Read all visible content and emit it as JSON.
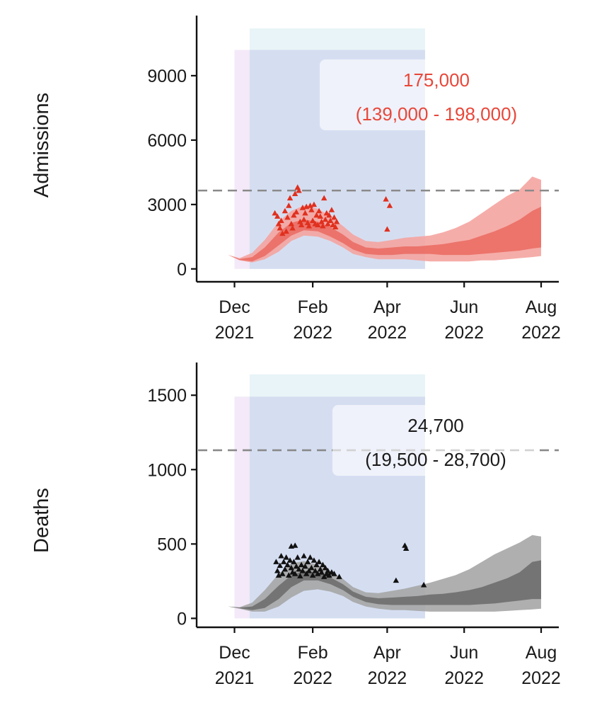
{
  "chart_data": [
    {
      "type": "area",
      "ylabel": "Admissions",
      "xlabel": "",
      "color": "#e8473a",
      "x_ticks": [
        {
          "date": "2021-12-01",
          "month": "Dec",
          "year": "2021"
        },
        {
          "date": "2022-02-01",
          "month": "Feb",
          "year": "2022"
        },
        {
          "date": "2022-04-01",
          "month": "Apr",
          "year": "2022"
        },
        {
          "date": "2022-06-01",
          "month": "Jun",
          "year": "2022"
        },
        {
          "date": "2022-08-01",
          "month": "Aug",
          "year": "2022"
        }
      ],
      "xlim": [
        "2021-11-01",
        "2022-08-15"
      ],
      "ylim": [
        -600,
        11800
      ],
      "y_ticks": [
        0,
        3000,
        6000,
        9000
      ],
      "y_tick_labels": [
        "0",
        "3000",
        "6000",
        "9000"
      ],
      "reference_line": 3650,
      "shaded_periods": [
        {
          "start": "2021-12-01",
          "end": "2022-05-01",
          "top": 10200,
          "color": "#efe2f5"
        },
        {
          "start": "2021-12-13",
          "end": "2022-05-01",
          "top": 11200,
          "color": "#def0f3"
        }
      ],
      "annotation": {
        "value": "175,000",
        "interval": "(139,000 - 198,000)"
      },
      "bands": {
        "x": [
          "2021-11-26",
          "2021-12-05",
          "2021-12-15",
          "2021-12-25",
          "2022-01-05",
          "2022-01-15",
          "2022-01-25",
          "2022-02-05",
          "2022-02-15",
          "2022-02-25",
          "2022-03-05",
          "2022-03-15",
          "2022-03-25",
          "2022-04-05",
          "2022-04-15",
          "2022-04-25",
          "2022-05-05",
          "2022-05-15",
          "2022-05-25",
          "2022-06-05",
          "2022-06-15",
          "2022-06-25",
          "2022-07-05",
          "2022-07-15",
          "2022-07-25",
          "2022-08-01"
        ],
        "outer_low": [
          650,
          400,
          300,
          450,
          800,
          1300,
          1550,
          1500,
          1300,
          1000,
          700,
          550,
          450,
          450,
          450,
          400,
          350,
          350,
          350,
          350,
          400,
          400,
          450,
          500,
          550,
          600
        ],
        "inner_low": [
          650,
          420,
          350,
          600,
          1100,
          1550,
          1800,
          1750,
          1500,
          1200,
          900,
          700,
          650,
          650,
          700,
          700,
          700,
          650,
          650,
          650,
          700,
          750,
          800,
          850,
          950,
          1000
        ],
        "inner_high": [
          650,
          460,
          550,
          1000,
          1700,
          2150,
          2300,
          2200,
          1950,
          1600,
          1250,
          1000,
          950,
          1000,
          1050,
          1050,
          1100,
          1150,
          1250,
          1350,
          1550,
          1750,
          2000,
          2300,
          2700,
          2900
        ],
        "outer_high": [
          650,
          500,
          750,
          1350,
          2200,
          2700,
          2950,
          2800,
          2450,
          2000,
          1600,
          1300,
          1250,
          1350,
          1450,
          1500,
          1550,
          1700,
          1900,
          2200,
          2600,
          3000,
          3400,
          3700,
          4300,
          4150
        ]
      },
      "observed": [
        {
          "x": "2022-01-02",
          "y": 2600
        },
        {
          "x": "2022-01-04",
          "y": 2450
        },
        {
          "x": "2022-01-05",
          "y": 2100
        },
        {
          "x": "2022-01-06",
          "y": 1900
        },
        {
          "x": "2022-01-07",
          "y": 2250
        },
        {
          "x": "2022-01-08",
          "y": 1650
        },
        {
          "x": "2022-01-10",
          "y": 2700
        },
        {
          "x": "2022-01-11",
          "y": 1750
        },
        {
          "x": "2022-01-12",
          "y": 2400
        },
        {
          "x": "2022-01-13",
          "y": 2950
        },
        {
          "x": "2022-01-14",
          "y": 3300
        },
        {
          "x": "2022-01-15",
          "y": 2100
        },
        {
          "x": "2022-01-16",
          "y": 1900
        },
        {
          "x": "2022-01-17",
          "y": 2500
        },
        {
          "x": "2022-01-18",
          "y": 3500
        },
        {
          "x": "2022-01-19",
          "y": 2650
        },
        {
          "x": "2022-01-20",
          "y": 3800
        },
        {
          "x": "2022-01-21",
          "y": 3650
        },
        {
          "x": "2022-01-22",
          "y": 2200
        },
        {
          "x": "2022-01-23",
          "y": 2050
        },
        {
          "x": "2022-01-24",
          "y": 2850
        },
        {
          "x": "2022-01-25",
          "y": 2300
        },
        {
          "x": "2022-01-26",
          "y": 2600
        },
        {
          "x": "2022-01-27",
          "y": 2900
        },
        {
          "x": "2022-01-28",
          "y": 2150
        },
        {
          "x": "2022-01-29",
          "y": 2000
        },
        {
          "x": "2022-01-30",
          "y": 2950
        },
        {
          "x": "2022-01-31",
          "y": 2750
        },
        {
          "x": "2022-02-01",
          "y": 2250
        },
        {
          "x": "2022-02-02",
          "y": 3000
        },
        {
          "x": "2022-02-03",
          "y": 2100
        },
        {
          "x": "2022-02-04",
          "y": 2500
        },
        {
          "x": "2022-02-05",
          "y": 2050
        },
        {
          "x": "2022-02-06",
          "y": 2700
        },
        {
          "x": "2022-02-07",
          "y": 2450
        },
        {
          "x": "2022-02-08",
          "y": 2200
        },
        {
          "x": "2022-02-09",
          "y": 2000
        },
        {
          "x": "2022-02-10",
          "y": 3300
        },
        {
          "x": "2022-02-11",
          "y": 2300
        },
        {
          "x": "2022-02-12",
          "y": 2600
        },
        {
          "x": "2022-02-13",
          "y": 2100
        },
        {
          "x": "2022-02-14",
          "y": 2500
        },
        {
          "x": "2022-02-15",
          "y": 2250
        },
        {
          "x": "2022-02-16",
          "y": 2750
        },
        {
          "x": "2022-02-17",
          "y": 2050
        },
        {
          "x": "2022-02-18",
          "y": 2400
        },
        {
          "x": "2022-02-19",
          "y": 1950
        },
        {
          "x": "2022-02-20",
          "y": 2200
        },
        {
          "x": "2022-03-31",
          "y": 3250
        },
        {
          "x": "2022-04-01",
          "y": 1850
        },
        {
          "x": "2022-04-03",
          "y": 2950
        }
      ]
    },
    {
      "type": "area",
      "ylabel": "Deaths",
      "xlabel": "",
      "color": "#555555",
      "x_ticks": [
        {
          "date": "2021-12-01",
          "month": "Dec",
          "year": "2021"
        },
        {
          "date": "2022-02-01",
          "month": "Feb",
          "year": "2022"
        },
        {
          "date": "2022-04-01",
          "month": "Apr",
          "year": "2022"
        },
        {
          "date": "2022-06-01",
          "month": "Jun",
          "year": "2022"
        },
        {
          "date": "2022-08-01",
          "month": "Aug",
          "year": "2022"
        }
      ],
      "xlim": [
        "2021-11-01",
        "2022-08-15"
      ],
      "ylim": [
        -60,
        1720
      ],
      "y_ticks": [
        0,
        500,
        1000,
        1500
      ],
      "y_tick_labels": [
        "0",
        "500",
        "1000",
        "1500"
      ],
      "reference_line": 1130,
      "shaded_periods": [
        {
          "start": "2021-12-01",
          "end": "2022-05-01",
          "top": 1490,
          "color": "#efe2f5"
        },
        {
          "start": "2021-12-13",
          "end": "2022-05-01",
          "top": 1640,
          "color": "#def0f3"
        }
      ],
      "annotation": {
        "value": "24,700",
        "interval": "(19,500 - 28,700)"
      },
      "bands": {
        "x": [
          "2021-11-26",
          "2021-12-05",
          "2021-12-15",
          "2021-12-25",
          "2022-01-05",
          "2022-01-15",
          "2022-01-25",
          "2022-02-05",
          "2022-02-15",
          "2022-02-25",
          "2022-03-05",
          "2022-03-15",
          "2022-03-25",
          "2022-04-05",
          "2022-04-15",
          "2022-04-25",
          "2022-05-05",
          "2022-05-15",
          "2022-05-25",
          "2022-06-05",
          "2022-06-15",
          "2022-06-25",
          "2022-07-05",
          "2022-07-15",
          "2022-07-25",
          "2022-08-01"
        ],
        "outer_low": [
          80,
          65,
          45,
          45,
          80,
          140,
          185,
          195,
          180,
          150,
          110,
          80,
          65,
          55,
          55,
          50,
          45,
          45,
          45,
          45,
          45,
          45,
          50,
          55,
          60,
          65
        ],
        "inner_low": [
          80,
          68,
          55,
          70,
          130,
          210,
          255,
          255,
          230,
          190,
          145,
          110,
          95,
          90,
          90,
          90,
          90,
          90,
          90,
          90,
          95,
          100,
          110,
          120,
          130,
          130
        ],
        "inner_high": [
          80,
          72,
          80,
          130,
          220,
          290,
          320,
          310,
          275,
          230,
          180,
          145,
          135,
          140,
          145,
          150,
          160,
          165,
          175,
          190,
          210,
          240,
          270,
          310,
          380,
          390
        ],
        "outer_high": [
          80,
          75,
          105,
          190,
          300,
          370,
          385,
          360,
          315,
          265,
          210,
          175,
          170,
          185,
          200,
          220,
          240,
          265,
          290,
          330,
          380,
          430,
          470,
          510,
          560,
          550
        ]
      },
      "observed": [
        {
          "x": "2022-01-03",
          "y": 380
        },
        {
          "x": "2022-01-04",
          "y": 320
        },
        {
          "x": "2022-01-05",
          "y": 290
        },
        {
          "x": "2022-01-06",
          "y": 355
        },
        {
          "x": "2022-01-07",
          "y": 420
        },
        {
          "x": "2022-01-08",
          "y": 300
        },
        {
          "x": "2022-01-09",
          "y": 380
        },
        {
          "x": "2022-01-10",
          "y": 330
        },
        {
          "x": "2022-01-11",
          "y": 410
        },
        {
          "x": "2022-01-12",
          "y": 360
        },
        {
          "x": "2022-01-13",
          "y": 290
        },
        {
          "x": "2022-01-14",
          "y": 390
        },
        {
          "x": "2022-01-15",
          "y": 340
        },
        {
          "x": "2022-01-16",
          "y": 310
        },
        {
          "x": "2022-01-17",
          "y": 380
        },
        {
          "x": "2022-01-18",
          "y": 300
        },
        {
          "x": "2022-01-19",
          "y": 350
        },
        {
          "x": "2022-01-20",
          "y": 410
        },
        {
          "x": "2022-01-21",
          "y": 330
        },
        {
          "x": "2022-01-22",
          "y": 285
        },
        {
          "x": "2022-01-23",
          "y": 360
        },
        {
          "x": "2022-01-24",
          "y": 320
        },
        {
          "x": "2022-01-25",
          "y": 420
        },
        {
          "x": "2022-01-26",
          "y": 350
        },
        {
          "x": "2022-01-27",
          "y": 300
        },
        {
          "x": "2022-01-28",
          "y": 380
        },
        {
          "x": "2022-01-29",
          "y": 320
        },
        {
          "x": "2022-01-30",
          "y": 410
        },
        {
          "x": "2022-01-31",
          "y": 340
        },
        {
          "x": "2022-02-01",
          "y": 290
        },
        {
          "x": "2022-02-02",
          "y": 390
        },
        {
          "x": "2022-02-03",
          "y": 320
        },
        {
          "x": "2022-02-04",
          "y": 360
        },
        {
          "x": "2022-02-05",
          "y": 300
        },
        {
          "x": "2022-02-06",
          "y": 380
        },
        {
          "x": "2022-02-07",
          "y": 330
        },
        {
          "x": "2022-02-08",
          "y": 310
        },
        {
          "x": "2022-02-09",
          "y": 360
        },
        {
          "x": "2022-02-10",
          "y": 280
        },
        {
          "x": "2022-02-11",
          "y": 340
        },
        {
          "x": "2022-02-12",
          "y": 300
        },
        {
          "x": "2022-02-13",
          "y": 320
        },
        {
          "x": "2022-02-14",
          "y": 290
        },
        {
          "x": "2022-02-16",
          "y": 310
        },
        {
          "x": "2022-02-18",
          "y": 300
        },
        {
          "x": "2022-01-15",
          "y": 485
        },
        {
          "x": "2022-01-18",
          "y": 490
        },
        {
          "x": "2022-02-22",
          "y": 280
        },
        {
          "x": "2022-04-08",
          "y": 255
        },
        {
          "x": "2022-04-15",
          "y": 490
        },
        {
          "x": "2022-04-16",
          "y": 470
        },
        {
          "x": "2022-04-30",
          "y": 225
        }
      ]
    }
  ]
}
